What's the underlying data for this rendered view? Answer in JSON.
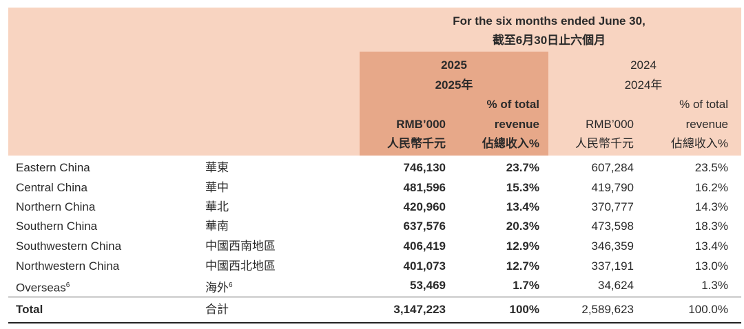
{
  "header": {
    "period_en": "For the six months ended June 30,",
    "period_zh": "截至6月30日止六個月",
    "y2025": {
      "year": "2025",
      "year_zh": "2025年",
      "amount_label": "RMB’000",
      "amount_label_zh": "人民幣千元",
      "pct_label_1": "% of total",
      "pct_label_2": "revenue",
      "pct_label_zh": "佔總收入%"
    },
    "y2024": {
      "year": "2024",
      "year_zh": "2024年",
      "amount_label": "RMB’000",
      "amount_label_zh": "人民幣千元",
      "pct_label_1": "% of total",
      "pct_label_2": "revenue",
      "pct_label_zh": "佔總收入%"
    }
  },
  "rows": [
    {
      "en": "Eastern China",
      "zh": "華東",
      "amt_2025": "746,130",
      "pct_2025": "23.7%",
      "amt_2024": "607,284",
      "pct_2024": "23.5%"
    },
    {
      "en": "Central China",
      "zh": "華中",
      "amt_2025": "481,596",
      "pct_2025": "15.3%",
      "amt_2024": "419,790",
      "pct_2024": "16.2%"
    },
    {
      "en": "Northern China",
      "zh": "華北",
      "amt_2025": "420,960",
      "pct_2025": "13.4%",
      "amt_2024": "370,777",
      "pct_2024": "14.3%"
    },
    {
      "en": "Southern China",
      "zh": "華南",
      "amt_2025": "637,576",
      "pct_2025": "20.3%",
      "amt_2024": "473,598",
      "pct_2024": "18.3%"
    },
    {
      "en": "Southwestern China",
      "zh": "中國西南地區",
      "amt_2025": "406,419",
      "pct_2025": "12.9%",
      "amt_2024": "346,359",
      "pct_2024": "13.4%"
    },
    {
      "en": "Northwestern China",
      "zh": "中國西北地區",
      "amt_2025": "401,073",
      "pct_2025": "12.7%",
      "amt_2024": "337,191",
      "pct_2024": "13.0%"
    },
    {
      "en": "Overseas",
      "en_sup": "6",
      "zh": "海外",
      "zh_sup": "6",
      "amt_2025": "53,469",
      "pct_2025": "1.7%",
      "amt_2024": "34,624",
      "pct_2024": "1.3%"
    }
  ],
  "total": {
    "en": "Total",
    "zh": "合計",
    "amt_2025": "3,147,223",
    "pct_2025": "100%",
    "amt_2024": "2,589,623",
    "pct_2024": "100.0%"
  },
  "colors": {
    "header_bg": "#f8d4c1",
    "highlight_2025": "#e7a889"
  }
}
